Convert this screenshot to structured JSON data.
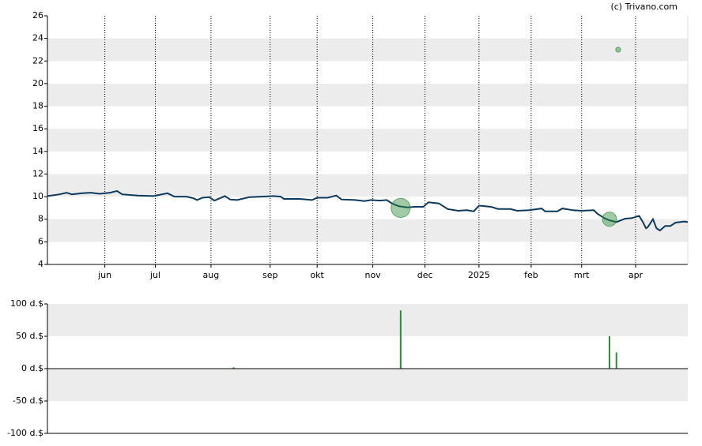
{
  "chart_data": [
    {
      "type": "line",
      "source": "(c) Trivano.com",
      "xlim": [
        0,
        368
      ],
      "xticks": [
        {
          "value": 33,
          "label": "jun"
        },
        {
          "value": 62,
          "label": "jul"
        },
        {
          "value": 94,
          "label": "aug"
        },
        {
          "value": 128,
          "label": "sep"
        },
        {
          "value": 155,
          "label": "okt"
        },
        {
          "value": 187,
          "label": "nov"
        },
        {
          "value": 217,
          "label": "dec"
        },
        {
          "value": 248,
          "label": "2025"
        },
        {
          "value": 278,
          "label": "feb"
        },
        {
          "value": 307,
          "label": "mrt"
        },
        {
          "value": 338,
          "label": "apr"
        }
      ],
      "ylim": [
        4,
        26
      ],
      "yticks": [
        4,
        6,
        8,
        10,
        12,
        14,
        16,
        18,
        20,
        22,
        24,
        26
      ],
      "bands": true,
      "xgrid": true,
      "line": {
        "color": "#0d3a5c",
        "x": [
          0,
          7,
          11,
          14,
          20,
          25,
          30,
          36,
          40,
          43,
          52,
          61,
          69,
          73,
          80,
          84,
          86,
          89,
          93,
          96,
          102,
          105,
          109,
          116,
          123,
          130,
          134,
          136,
          145,
          152,
          155,
          161,
          166,
          169,
          177,
          182,
          186,
          191,
          195,
          198,
          202,
          207,
          211,
          216,
          219,
          225,
          230,
          236,
          241,
          245,
          248,
          255,
          259,
          266,
          270,
          277,
          284,
          286,
          293,
          296,
          302,
          307,
          314,
          316,
          320,
          323,
          327,
          332,
          336,
          340,
          342,
          344,
          345,
          348,
          350,
          352,
          355,
          358,
          361,
          366,
          368
        ],
        "values": [
          10.05,
          10.2,
          10.35,
          10.2,
          10.3,
          10.35,
          10.25,
          10.35,
          10.5,
          10.2,
          10.1,
          10.05,
          10.3,
          10.0,
          10.0,
          9.85,
          9.7,
          9.9,
          9.95,
          9.65,
          10.05,
          9.75,
          9.7,
          9.95,
          10.0,
          10.05,
          10.0,
          9.8,
          9.8,
          9.7,
          9.9,
          9.9,
          10.1,
          9.75,
          9.7,
          9.6,
          9.7,
          9.65,
          9.7,
          9.4,
          9.15,
          9.05,
          9.1,
          9.1,
          9.5,
          9.4,
          8.9,
          8.75,
          8.8,
          8.7,
          9.2,
          9.1,
          8.9,
          8.9,
          8.75,
          8.8,
          8.95,
          8.7,
          8.7,
          8.95,
          8.8,
          8.75,
          8.8,
          8.5,
          8.1,
          7.9,
          7.75,
          8.05,
          8.1,
          8.3,
          7.8,
          7.2,
          7.3,
          8.0,
          7.2,
          7.0,
          7.4,
          7.4,
          7.7,
          7.8,
          7.75
        ]
      },
      "bubbles": {
        "color": "#2e8b3a",
        "x": [
          203,
          323,
          328
        ],
        "values": [
          9.0,
          8.0,
          23.0
        ],
        "sizes": [
          90,
          50,
          6
        ]
      }
    },
    {
      "type": "bar",
      "color": "#2e8b3a",
      "xlim": [
        0,
        368
      ],
      "ylim": [
        -100,
        100
      ],
      "yticks": [
        {
          "value": -100,
          "label": "-100 d.$"
        },
        {
          "value": -50,
          "label": "-50 d.$"
        },
        {
          "value": 0,
          "label": "0 d.$"
        },
        {
          "value": 50,
          "label": "50 d.$"
        },
        {
          "value": 100,
          "label": "100 d.$"
        }
      ],
      "bands": true,
      "x": [
        107,
        203,
        323,
        327
      ],
      "values": [
        2,
        90,
        50,
        25
      ]
    }
  ]
}
